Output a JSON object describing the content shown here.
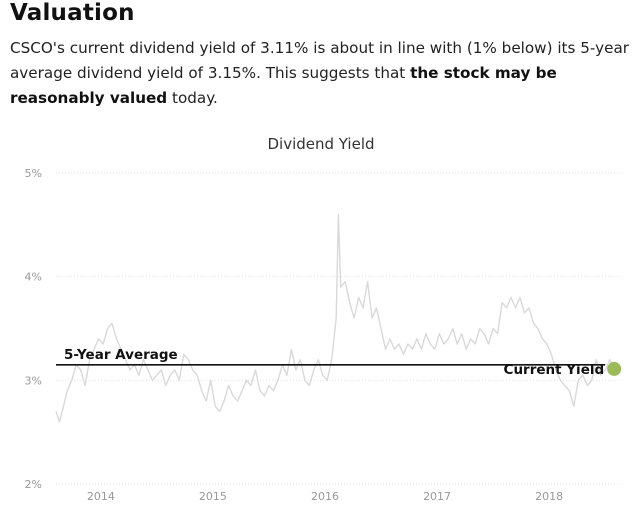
{
  "section": {
    "title": "Valuation",
    "summary_prefix": "CSCO's current dividend yield of 3.11% is about in line with (1% below) its 5-year average dividend yield of 3.15%. This suggests that ",
    "summary_bold": "the stock may be reasonably valued",
    "summary_suffix": " today."
  },
  "chart_data": {
    "type": "line",
    "title": "Dividend Yield",
    "xlabel": "",
    "ylabel": "",
    "x_ticks": [
      "2014",
      "2015",
      "2016",
      "2017",
      "2018"
    ],
    "y_ticks": [
      "2%",
      "3%",
      "4%",
      "5%"
    ],
    "xlim": [
      2013.6,
      2018.65
    ],
    "ylim": [
      2,
      5
    ],
    "grid": true,
    "series": [
      {
        "name": "",
        "color": "#d9d9d9",
        "x": [
          2013.6,
          2013.63,
          2013.66,
          2013.7,
          2013.74,
          2013.78,
          2013.82,
          2013.86,
          2013.9,
          2013.94,
          2013.98,
          2014.02,
          2014.06,
          2014.1,
          2014.14,
          2014.18,
          2014.22,
          2014.26,
          2014.3,
          2014.34,
          2014.38,
          2014.42,
          2014.46,
          2014.5,
          2014.54,
          2014.58,
          2014.62,
          2014.66,
          2014.7,
          2014.74,
          2014.78,
          2014.82,
          2014.86,
          2014.9,
          2014.94,
          2014.98,
          2015.02,
          2015.06,
          2015.1,
          2015.14,
          2015.18,
          2015.22,
          2015.26,
          2015.3,
          2015.34,
          2015.38,
          2015.42,
          2015.46,
          2015.5,
          2015.54,
          2015.58,
          2015.62,
          2015.66,
          2015.7,
          2015.74,
          2015.78,
          2015.82,
          2015.86,
          2015.9,
          2015.94,
          2015.98,
          2016.02,
          2016.06,
          2016.1,
          2016.12,
          2016.14,
          2016.18,
          2016.22,
          2016.26,
          2016.3,
          2016.34,
          2016.38,
          2016.42,
          2016.46,
          2016.5,
          2016.54,
          2016.58,
          2016.62,
          2016.66,
          2016.7,
          2016.74,
          2016.78,
          2016.82,
          2016.86,
          2016.9,
          2016.94,
          2016.98,
          2017.02,
          2017.06,
          2017.1,
          2017.14,
          2017.18,
          2017.22,
          2017.26,
          2017.3,
          2017.34,
          2017.38,
          2017.42,
          2017.46,
          2017.5,
          2017.54,
          2017.58,
          2017.62,
          2017.66,
          2017.7,
          2017.74,
          2017.78,
          2017.82,
          2017.86,
          2017.9,
          2017.94,
          2017.98,
          2018.02,
          2018.06,
          2018.1,
          2018.14,
          2018.18,
          2018.22,
          2018.26,
          2018.3,
          2018.34,
          2018.38,
          2018.42,
          2018.46,
          2018.5,
          2018.54,
          2018.58
        ],
        "values": [
          2.7,
          2.6,
          2.72,
          2.9,
          3.0,
          3.15,
          3.1,
          2.95,
          3.2,
          3.3,
          3.4,
          3.35,
          3.5,
          3.55,
          3.4,
          3.3,
          3.2,
          3.1,
          3.15,
          3.05,
          3.2,
          3.1,
          3.0,
          3.05,
          3.1,
          2.95,
          3.05,
          3.1,
          3.0,
          3.25,
          3.2,
          3.1,
          3.05,
          2.9,
          2.8,
          3.0,
          2.75,
          2.7,
          2.8,
          2.95,
          2.85,
          2.8,
          2.9,
          3.0,
          2.95,
          3.1,
          2.9,
          2.85,
          2.95,
          2.9,
          3.0,
          3.15,
          3.05,
          3.3,
          3.1,
          3.2,
          3.0,
          2.95,
          3.1,
          3.2,
          3.05,
          3.0,
          3.2,
          3.6,
          4.6,
          3.9,
          3.95,
          3.75,
          3.6,
          3.8,
          3.7,
          3.95,
          3.6,
          3.7,
          3.5,
          3.3,
          3.4,
          3.3,
          3.35,
          3.25,
          3.35,
          3.3,
          3.4,
          3.3,
          3.45,
          3.35,
          3.3,
          3.45,
          3.35,
          3.4,
          3.5,
          3.35,
          3.45,
          3.3,
          3.4,
          3.35,
          3.5,
          3.45,
          3.35,
          3.5,
          3.45,
          3.75,
          3.7,
          3.8,
          3.7,
          3.8,
          3.65,
          3.7,
          3.55,
          3.5,
          3.4,
          3.35,
          3.25,
          3.1,
          3.0,
          2.95,
          2.9,
          2.75,
          3.0,
          3.05,
          2.95,
          3.0,
          3.2,
          3.05,
          3.1,
          3.2,
          3.11
        ]
      }
    ],
    "reference_line": {
      "label": "5-Year Average",
      "value": 3.15,
      "color": "#111111"
    },
    "current_point": {
      "label": "Current Yield",
      "value": 3.11,
      "color": "#9bbb59"
    }
  }
}
